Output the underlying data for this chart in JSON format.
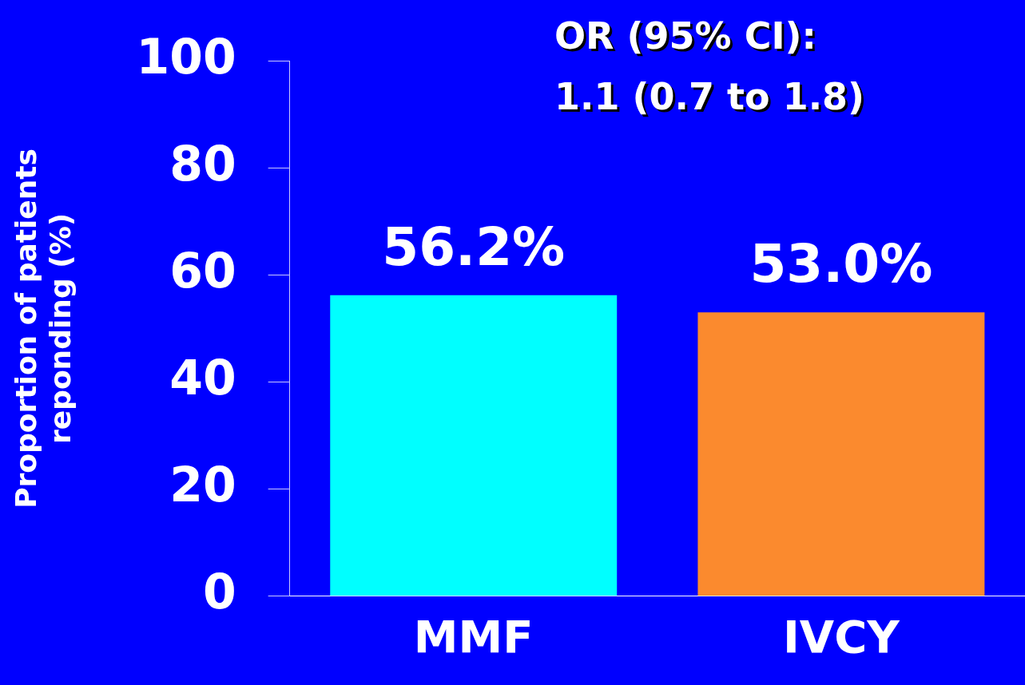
{
  "chart_data": {
    "type": "bar",
    "categories": [
      "MMF",
      "IVCY"
    ],
    "values": [
      56.2,
      53.0
    ],
    "colors": [
      "#00ffff",
      "#fb8a2e"
    ],
    "value_labels": [
      "56.2%",
      "53.0%"
    ],
    "ylabel": "Proportion of patients reponding (%)",
    "ylim": [
      0,
      100
    ],
    "yticks": [
      0,
      20,
      40,
      60,
      80,
      100
    ],
    "annotations": [
      "OR (95% CI):",
      "1.1 (0.7 to 1.8)"
    ],
    "grid": false,
    "legend": false
  }
}
